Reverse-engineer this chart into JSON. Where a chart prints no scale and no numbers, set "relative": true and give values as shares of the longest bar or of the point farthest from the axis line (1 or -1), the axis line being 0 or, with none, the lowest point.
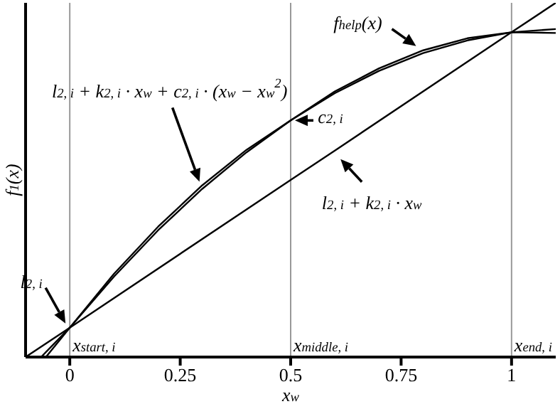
{
  "chart_data": {
    "type": "line",
    "xlabel": "x$_{w}$",
    "ylabel": "f$_{1}$(x)",
    "relative": true,
    "xlim": [
      -0.1,
      1.1
    ],
    "xticks": [
      0,
      0.25,
      0.5,
      0.75,
      1
    ],
    "tick_labels": "x",
    "marker": "none",
    "line_style": "solid",
    "series": [
      {
        "name": "f$_{help}$(x)",
        "color": "#000000",
        "x": [
          -0.065,
          0,
          0.1,
          0.2,
          0.3,
          0.4,
          0.5,
          0.6,
          0.7,
          0.8,
          0.9,
          1.0,
          1.1
        ],
        "values": [
          0,
          0.083,
          0.235,
          0.368,
          0.485,
          0.585,
          0.668,
          0.75,
          0.815,
          0.866,
          0.9,
          0.917,
          0.915
        ]
      },
      {
        "name": "l$_{2, i}$ + k$_{2, i}$ · x$_{w}$ + c$_{2, i}$ · (x$_{w}$ − x$_{w}$$^{2}$)",
        "color": "#000000",
        "x": [
          -0.054,
          0,
          0.1,
          0.2,
          0.3,
          0.4,
          0.5,
          0.6,
          0.7,
          0.8,
          0.9,
          1.0,
          1.1
        ],
        "values": [
          0,
          0.083,
          0.227,
          0.358,
          0.475,
          0.578,
          0.668,
          0.745,
          0.808,
          0.858,
          0.894,
          0.917,
          0.926
        ]
      },
      {
        "name": "l$_{2, i}$ + k$_{2, i}$ · x$_{w}$",
        "color": "#000000",
        "x": [
          -0.1,
          0,
          0.5,
          0.6,
          1,
          1.1
        ],
        "values": [
          0,
          0.083,
          0.5,
          0.583,
          0.917,
          1
        ]
      }
    ],
    "ref_lines": [
      {
        "axis": "x",
        "value": 0,
        "label": "x$_{start, i}$",
        "color": "#999999"
      },
      {
        "axis": "x",
        "value": 0.5,
        "label": "x$_{middle, i}$",
        "color": "#999999"
      },
      {
        "axis": "x",
        "value": 1,
        "label": "x$_{end, i}$",
        "color": "#999999"
      }
    ],
    "annotations": [
      {
        "text": "c$_{2, i}$",
        "x": 0.5,
        "y": 0.668
      },
      {
        "text": "l$_{2, i}$",
        "x": 0,
        "y": 0.083
      }
    ]
  }
}
